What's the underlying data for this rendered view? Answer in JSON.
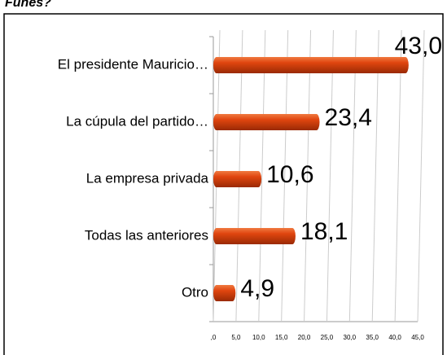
{
  "chart_data": {
    "type": "bar",
    "orientation": "horizontal",
    "title": "Funes?",
    "categories": [
      "El presidente Mauricio…",
      "La cúpula del partido…",
      "La empresa privada",
      "Todas las anteriores",
      "Otro"
    ],
    "values": [
      43.0,
      23.4,
      10.6,
      18.1,
      4.9
    ],
    "value_labels": [
      "43,0",
      "23,4",
      "10,6",
      "18,1",
      "4,9"
    ],
    "color": "#e0450f",
    "xlim": [
      0,
      45
    ],
    "xticks": [
      {
        "value": 0,
        "label": ",0"
      },
      {
        "value": 5,
        "label": "5,0"
      },
      {
        "value": 10,
        "label": "10,0"
      },
      {
        "value": 15,
        "label": "15,0"
      },
      {
        "value": 20,
        "label": "20,0"
      },
      {
        "value": 25,
        "label": "25,0"
      },
      {
        "value": 30,
        "label": "30,0"
      },
      {
        "value": 35,
        "label": "35,0"
      },
      {
        "value": 40,
        "label": "40,0"
      },
      {
        "value": 45,
        "label": "45,0"
      }
    ],
    "grid": true
  }
}
